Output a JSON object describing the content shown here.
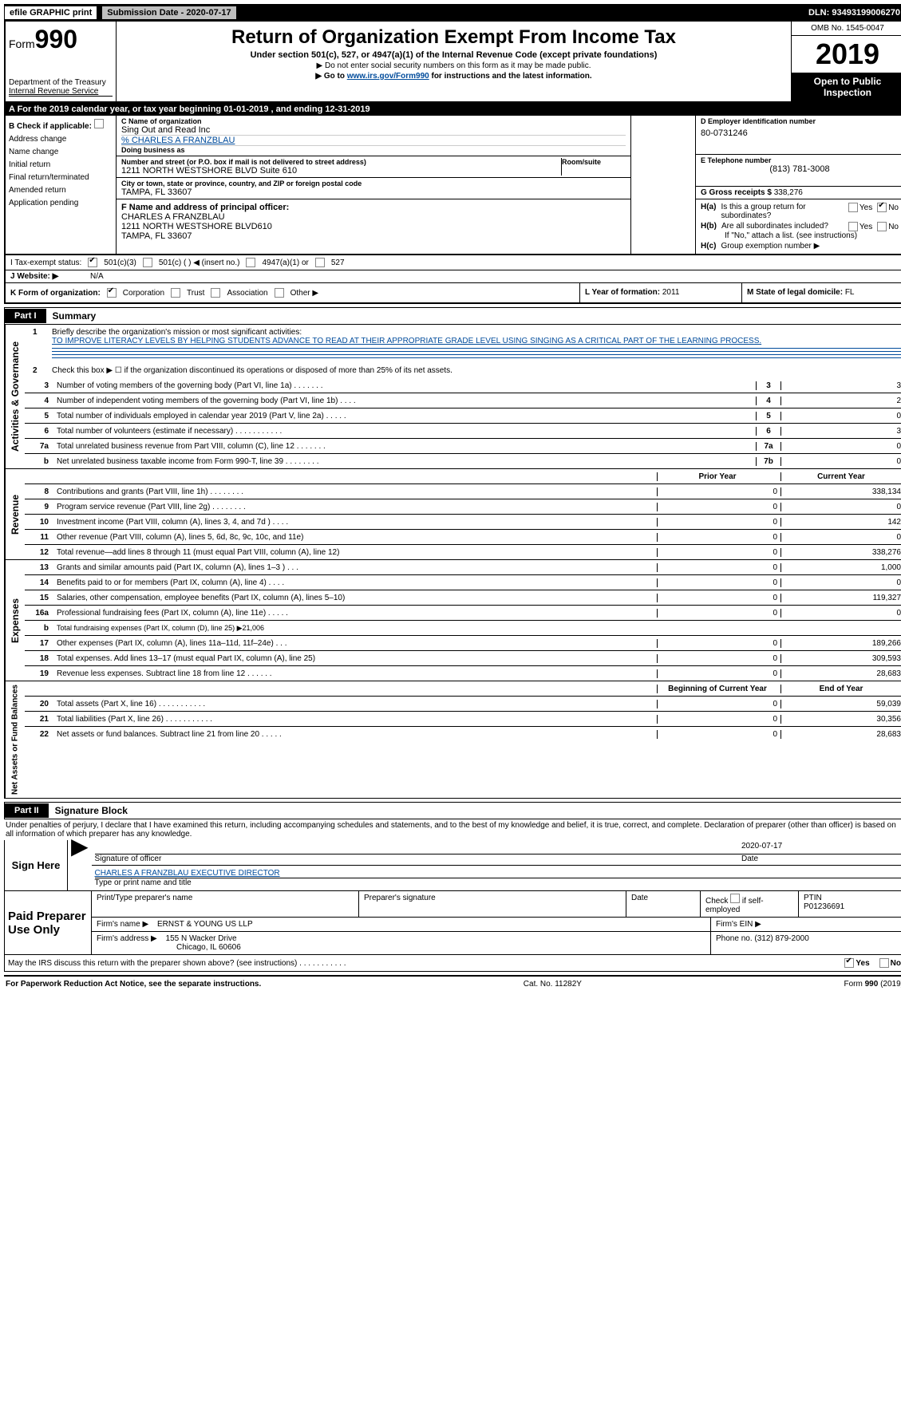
{
  "top": {
    "efile": "efile GRAPHIC print",
    "submission": "Submission Date - 2020-07-17",
    "dln": "DLN: 93493199006270"
  },
  "header": {
    "form_label": "Form",
    "form_num": "990",
    "dept": "Department of the Treasury",
    "irs_line": "Internal Revenue Service",
    "title": "Return of Organization Exempt From Income Tax",
    "sub1": "Under section 501(c), 527, or 4947(a)(1) of the Internal Revenue Code (except private foundations)",
    "sub2": "▶ Do not enter social security numbers on this form as it may be made public.",
    "sub3_pre": "▶ Go to ",
    "sub3_link": "www.irs.gov/Form990",
    "sub3_post": " for instructions and the latest information.",
    "omb": "OMB No. 1545-0047",
    "year": "2019",
    "open": "Open to Public Inspection"
  },
  "cal": "A   For the 2019 calendar year, or tax year beginning 01-01-2019     , and ending 12-31-2019",
  "b": {
    "heading": "B Check if applicable:",
    "opts": [
      "Address change",
      "Name change",
      "Initial return",
      "Final return/terminated",
      "Amended return",
      "Application pending"
    ]
  },
  "c": {
    "name_lbl": "C Name of organization",
    "name": "Sing Out and Read Inc",
    "care_of": "% CHARLES A FRANZBLAU",
    "dba_lbl": "Doing business as",
    "street_lbl": "Number and street (or P.O. box if mail is not delivered to street address)",
    "room_lbl": "Room/suite",
    "street": "1211 NORTH WESTSHORE BLVD Suite 610",
    "city_lbl": "City or town, state or province, country, and ZIP or foreign postal code",
    "city": "TAMPA, FL  33607"
  },
  "d": {
    "lbl": "D Employer identification number",
    "val": "80-0731246"
  },
  "e": {
    "lbl": "E Telephone number",
    "val": "(813) 781-3008"
  },
  "g": {
    "lbl": "G Gross receipts $ ",
    "val": "338,276"
  },
  "f": {
    "lbl": "F  Name and address of principal officer:",
    "name": "CHARLES A FRANZBLAU",
    "addr": "1211 NORTH WESTSHORE BLVD610",
    "city": "TAMPA, FL  33607"
  },
  "h": {
    "a_lbl": "H(a)",
    "a_txt": "Is this a group return for subordinates?",
    "b_lbl": "H(b)",
    "b_txt": "Are all subordinates included?",
    "b_note": "If \"No,\" attach a list. (see instructions)",
    "c_lbl": "H(c)",
    "c_txt": "Group exemption number ▶",
    "yes": "Yes",
    "no": "No"
  },
  "i": {
    "lbl": "I     Tax-exempt status:",
    "o1": "501(c)(3)",
    "o2": "501(c) (  ) ◀ (insert no.)",
    "o3": "4947(a)(1) or",
    "o4": "527"
  },
  "j": {
    "lbl": "J    Website: ▶",
    "val": "N/A"
  },
  "k": {
    "lbl": "K Form of organization:",
    "o1": "Corporation",
    "o2": "Trust",
    "o3": "Association",
    "o4": "Other ▶"
  },
  "l": {
    "lbl": "L Year of formation: ",
    "val": "2011"
  },
  "m": {
    "lbl": "M State of legal domicile: ",
    "val": "FL"
  },
  "part1": {
    "tab": "Part I",
    "title": "Summary",
    "l1_lbl": "1",
    "l1_txt": "Briefly describe the organization's mission or most significant activities:",
    "l1_val": "TO IMPROVE LITERACY LEVELS BY HELPING STUDENTS ADVANCE TO READ AT THEIR APPROPRIATE GRADE LEVEL USING SINGING AS A CRITICAL PART OF THE LEARNING PROCESS.",
    "l2_lbl": "2",
    "l2_txt": "Check this box ▶ ☐  if the organization discontinued its operations or disposed of more than 25% of its net assets.",
    "vert_ag": "Activities & Governance",
    "vert_rev": "Revenue",
    "vert_exp": "Expenses",
    "vert_net": "Net Assets or Fund Balances",
    "hdr_prior": "Prior Year",
    "hdr_curr": "Current Year",
    "hdr_beg": "Beginning of Current Year",
    "hdr_end": "End of Year",
    "rows_gov": [
      {
        "n": "3",
        "d": "Number of voting members of the governing body (Part VI, line 1a)   .     .     .     .     .     .     .",
        "box": "3",
        "v": "3"
      },
      {
        "n": "4",
        "d": "Number of independent voting members of the governing body (Part VI, line 1b)   .     .     .     .",
        "box": "4",
        "v": "2"
      },
      {
        "n": "5",
        "d": "Total number of individuals employed in calendar year 2019 (Part V, line 2a)   .     .     .     .     .",
        "box": "5",
        "v": "0"
      },
      {
        "n": "6",
        "d": "Total number of volunteers (estimate if necessary)   .     .     .     .     .     .     .     .     .     .     .",
        "box": "6",
        "v": "3"
      },
      {
        "n": "7a",
        "d": "Total unrelated business revenue from Part VIII, column (C), line 12   .     .     .     .     .     .     .",
        "box": "7a",
        "v": "0"
      },
      {
        "n": "b",
        "d": "Net unrelated business taxable income from Form 990-T, line 39   .     .     .     .     .     .     .     .",
        "box": "7b",
        "v": "0"
      }
    ],
    "rows_rev": [
      {
        "n": "8",
        "d": "Contributions and grants (Part VIII, line 1h)   .     .     .     .     .     .     .     .",
        "p": "0",
        "c": "338,134"
      },
      {
        "n": "9",
        "d": "Program service revenue (Part VIII, line 2g)   .     .     .     .     .     .     .     .",
        "p": "0",
        "c": "0"
      },
      {
        "n": "10",
        "d": "Investment income (Part VIII, column (A), lines 3, 4, and 7d )   .     .     .     .",
        "p": "0",
        "c": "142"
      },
      {
        "n": "11",
        "d": "Other revenue (Part VIII, column (A), lines 5, 6d, 8c, 9c, 10c, and 11e)",
        "p": "0",
        "c": "0"
      },
      {
        "n": "12",
        "d": "Total revenue—add lines 8 through 11 (must equal Part VIII, column (A), line 12)",
        "p": "0",
        "c": "338,276"
      }
    ],
    "rows_exp": [
      {
        "n": "13",
        "d": "Grants and similar amounts paid (Part IX, column (A), lines 1–3 )   .     .     .",
        "p": "0",
        "c": "1,000"
      },
      {
        "n": "14",
        "d": "Benefits paid to or for members (Part IX, column (A), line 4)   .     .     .     .",
        "p": "0",
        "c": "0"
      },
      {
        "n": "15",
        "d": "Salaries, other compensation, employee benefits (Part IX, column (A), lines 5–10)",
        "p": "0",
        "c": "119,327"
      },
      {
        "n": "16a",
        "d": "Professional fundraising fees (Part IX, column (A), line 11e)   .     .     .     .     .",
        "p": "0",
        "c": "0"
      },
      {
        "n": "b",
        "d": "Total fundraising expenses (Part IX, column (D), line 25) ▶21,006",
        "grey": true
      },
      {
        "n": "17",
        "d": "Other expenses (Part IX, column (A), lines 11a–11d, 11f–24e)   .     .     .",
        "p": "0",
        "c": "189,266"
      },
      {
        "n": "18",
        "d": "Total expenses. Add lines 13–17 (must equal Part IX, column (A), line 25)",
        "p": "0",
        "c": "309,593"
      },
      {
        "n": "19",
        "d": "Revenue less expenses. Subtract line 18 from line 12   .     .     .     .     .     .",
        "p": "0",
        "c": "28,683"
      }
    ],
    "rows_net": [
      {
        "n": "20",
        "d": "Total assets (Part X, line 16)   .     .     .     .     .     .     .     .     .     .     .",
        "p": "0",
        "c": "59,039"
      },
      {
        "n": "21",
        "d": "Total liabilities (Part X, line 26)   .     .     .     .     .     .     .     .     .     .     .",
        "p": "0",
        "c": "30,356"
      },
      {
        "n": "22",
        "d": "Net assets or fund balances. Subtract line 21 from line 20   .     .     .     .     .",
        "p": "0",
        "c": "28,683"
      }
    ]
  },
  "part2": {
    "tab": "Part II",
    "title": "Signature Block",
    "decl": "Under penalties of perjury, I declare that I have examined this return, including accompanying schedules and statements, and to the best of my knowledge and belief, it is true, correct, and complete. Declaration of preparer (other than officer) is based on all information of which preparer has any knowledge.",
    "sign_here": "Sign Here",
    "sig_officer": "Signature of officer",
    "date": "Date",
    "date_val": "2020-07-17",
    "name_title": "CHARLES A FRANZBLAU  EXECUTIVE DIRECTOR",
    "name_title_lbl": "Type or print name and title"
  },
  "prep": {
    "title": "Paid Preparer Use Only",
    "h1": "Print/Type preparer's name",
    "h2": "Preparer's signature",
    "h3": "Date",
    "h4_pre": "Check ",
    "h4_post": " if self-employed",
    "h5": "PTIN",
    "ptin": "P01236691",
    "firm_lbl": "Firm's name     ▶",
    "firm": "ERNST & YOUNG US LLP",
    "ein_lbl": "Firm's EIN ▶",
    "addr_lbl": "Firm's address ▶",
    "addr1": "155 N Wacker Drive",
    "addr2": "Chicago, IL  60606",
    "phone_lbl": "Phone no. ",
    "phone": "(312) 879-2000"
  },
  "discuss": {
    "txt": "May the IRS discuss this return with the preparer shown above? (see instructions)   .     .     .     .     .     .     .     .     .     .     .",
    "yes": "Yes",
    "no": "No"
  },
  "footer": {
    "left": "For Paperwork Reduction Act Notice, see the separate instructions.",
    "mid": "Cat. No. 11282Y",
    "right": "Form 990 (2019)"
  }
}
